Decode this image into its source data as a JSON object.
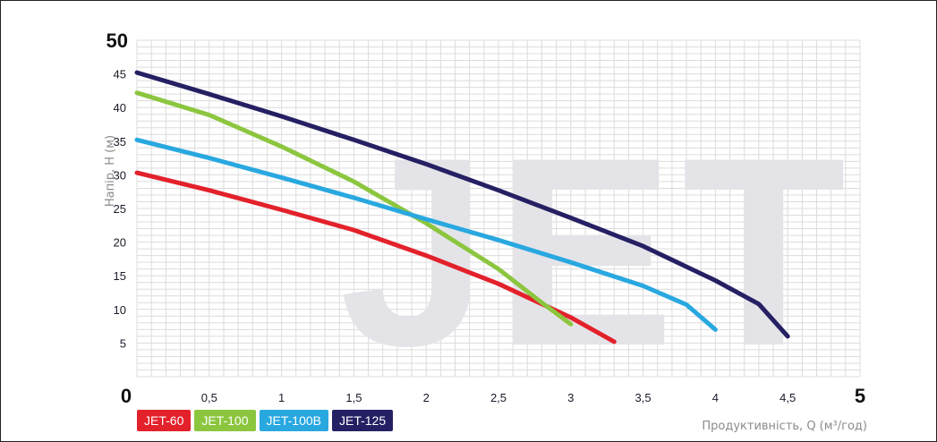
{
  "chart_data": {
    "type": "line",
    "watermark": "JET",
    "xlabel": "Продуктивність, Q (м³/год)",
    "ylabel": "Напір, H (м)",
    "xlim": [
      0,
      5
    ],
    "ylim": [
      0,
      50
    ],
    "x_ticks": [
      {
        "value": 0,
        "label": "0",
        "big": true
      },
      {
        "value": 0.5,
        "label": "0,5",
        "big": false
      },
      {
        "value": 1,
        "label": "1",
        "big": false
      },
      {
        "value": 1.5,
        "label": "1,5",
        "big": false
      },
      {
        "value": 2,
        "label": "2",
        "big": false
      },
      {
        "value": 2.5,
        "label": "2,5",
        "big": false
      },
      {
        "value": 3,
        "label": "3",
        "big": false
      },
      {
        "value": 3.5,
        "label": "3,5",
        "big": false
      },
      {
        "value": 4,
        "label": "4",
        "big": false
      },
      {
        "value": 4.5,
        "label": "4,5",
        "big": false
      },
      {
        "value": 5,
        "label": "5",
        "big": true
      }
    ],
    "y_ticks": [
      {
        "value": 5,
        "label": "5",
        "big": false
      },
      {
        "value": 10,
        "label": "10",
        "big": false
      },
      {
        "value": 15,
        "label": "15",
        "big": false
      },
      {
        "value": 20,
        "label": "20",
        "big": false
      },
      {
        "value": 25,
        "label": "25",
        "big": false
      },
      {
        "value": 30,
        "label": "30",
        "big": false
      },
      {
        "value": 35,
        "label": "35",
        "big": false
      },
      {
        "value": 40,
        "label": "40",
        "big": false
      },
      {
        "value": 45,
        "label": "45",
        "big": false
      },
      {
        "value": 50,
        "label": "50",
        "big": true
      }
    ],
    "grid": true,
    "legend_position": "bottom-left",
    "series": [
      {
        "name": "JET-60",
        "color": "#e3212b",
        "points": [
          [
            0,
            30.3
          ],
          [
            0.5,
            27.7
          ],
          [
            1,
            24.8
          ],
          [
            1.5,
            21.8
          ],
          [
            2,
            18.0
          ],
          [
            2.5,
            13.8
          ],
          [
            3,
            8.8
          ],
          [
            3.3,
            5.2
          ]
        ]
      },
      {
        "name": "JET-100",
        "color": "#8cc63f",
        "points": [
          [
            0,
            42.2
          ],
          [
            0.5,
            38.9
          ],
          [
            1,
            34.2
          ],
          [
            1.5,
            29.0
          ],
          [
            2,
            22.8
          ],
          [
            2.5,
            16.0
          ],
          [
            2.8,
            11.0
          ],
          [
            3,
            7.8
          ]
        ]
      },
      {
        "name": "JET-100B",
        "color": "#29a8e0",
        "points": [
          [
            0,
            35.2
          ],
          [
            0.5,
            32.5
          ],
          [
            1,
            29.6
          ],
          [
            1.5,
            26.6
          ],
          [
            2,
            23.4
          ],
          [
            2.5,
            20.3
          ],
          [
            3,
            17.0
          ],
          [
            3.5,
            13.5
          ],
          [
            3.8,
            10.7
          ],
          [
            4,
            7.0
          ]
        ]
      },
      {
        "name": "JET-125",
        "color": "#252063",
        "points": [
          [
            0,
            45.2
          ],
          [
            0.5,
            42.0
          ],
          [
            1,
            38.7
          ],
          [
            1.5,
            35.2
          ],
          [
            2,
            31.6
          ],
          [
            2.5,
            27.7
          ],
          [
            3,
            23.6
          ],
          [
            3.5,
            19.4
          ],
          [
            4,
            14.3
          ],
          [
            4.3,
            10.8
          ],
          [
            4.5,
            6.0
          ]
        ]
      }
    ]
  }
}
